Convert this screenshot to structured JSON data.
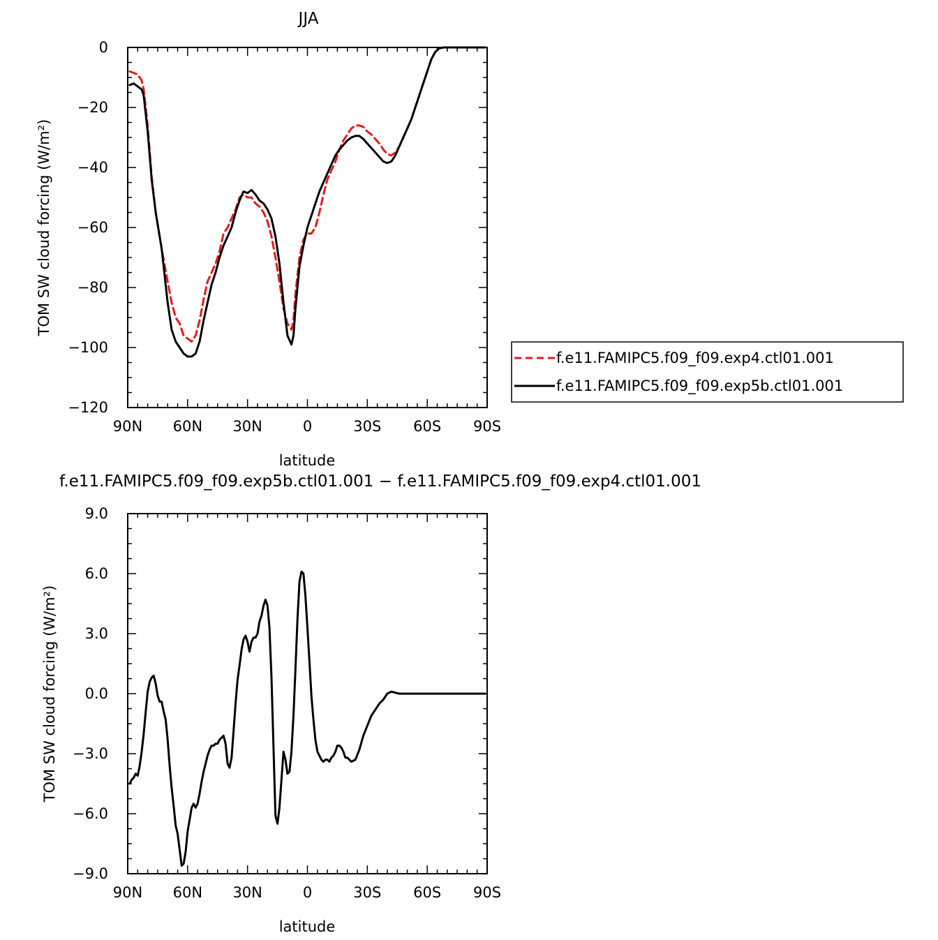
{
  "chart_data": [
    {
      "type": "line",
      "title": "JJA",
      "xlabel": "latitude",
      "ylabel": "TOM SW cloud forcing (W/m²)",
      "xlim": [
        90,
        -90
      ],
      "ylim": [
        -120,
        0
      ],
      "x_ticks": [
        90,
        60,
        30,
        0,
        -30,
        -60,
        -90
      ],
      "x_tick_labels": [
        "90N",
        "60N",
        "30N",
        "0",
        "30S",
        "60S",
        "90S"
      ],
      "y_ticks": [
        0,
        -20,
        -40,
        -60,
        -80,
        -100,
        -120
      ],
      "y_tick_labels": [
        "0",
        "−20",
        "−40",
        "−60",
        "−80",
        "−100",
        "−120"
      ],
      "legend": "right",
      "series": [
        {
          "name": "f.e11.FAMIPC5.f09_f09.exp4.ctl01.001",
          "color": "#e41a1c",
          "dash": "dashed",
          "x": [
            89,
            87,
            85,
            83,
            82,
            80,
            78,
            76,
            73,
            70,
            68,
            66,
            64,
            62,
            60,
            58,
            56,
            54,
            52,
            50,
            48,
            46,
            44,
            42,
            40,
            38,
            36,
            34,
            32,
            30,
            28,
            26,
            24,
            22,
            20,
            18,
            16,
            14,
            12,
            10,
            8,
            7,
            6,
            4,
            2,
            0,
            -2,
            -4,
            -6,
            -8,
            -10,
            -12,
            -14,
            -16,
            -18,
            -20,
            -22,
            -24,
            -26,
            -28,
            -30,
            -32,
            -34,
            -36,
            -38,
            -40,
            -42,
            -44,
            -46,
            -48,
            -50,
            -52,
            -54,
            -56,
            -58,
            -60,
            -62,
            -64,
            -66,
            -68,
            -70,
            -75,
            -80,
            -85,
            -89
          ],
          "y": [
            -8,
            -8.5,
            -9,
            -11,
            -14,
            -26,
            -43,
            -55,
            -67,
            -78,
            -85,
            -90,
            -92,
            -96,
            -97,
            -98,
            -96,
            -91,
            -84,
            -78,
            -75,
            -72,
            -68,
            -62,
            -60,
            -57,
            -54,
            -50,
            -49,
            -50,
            -50,
            -52,
            -53,
            -55,
            -58,
            -63,
            -70,
            -78,
            -87,
            -92,
            -94,
            -91,
            -82,
            -70,
            -64,
            -62,
            -62,
            -60,
            -55,
            -49,
            -44,
            -41,
            -38,
            -34,
            -31,
            -29,
            -27,
            -26,
            -26,
            -26.5,
            -28,
            -29,
            -30.5,
            -32,
            -34,
            -35.5,
            -36,
            -35,
            -33,
            -30,
            -27,
            -24,
            -20,
            -16,
            -12,
            -8,
            -4,
            -1.5,
            -0.3,
            0,
            0,
            0,
            0,
            0,
            0
          ]
        },
        {
          "name": "f.e11.FAMIPC5.f09_f09.exp5b.ctl01.001",
          "color": "#000000",
          "dash": "solid",
          "x": [
            89,
            87,
            85,
            83,
            82,
            80,
            78,
            76,
            73,
            70,
            68,
            66,
            64,
            62,
            60,
            58,
            56,
            54,
            52,
            50,
            48,
            46,
            44,
            42,
            40,
            38,
            36,
            34,
            32,
            30,
            28,
            26,
            24,
            22,
            20,
            18,
            16,
            14,
            12,
            10,
            8,
            7,
            6,
            4,
            2,
            0,
            -2,
            -4,
            -6,
            -8,
            -10,
            -12,
            -14,
            -16,
            -18,
            -20,
            -22,
            -24,
            -26,
            -28,
            -30,
            -32,
            -34,
            -36,
            -38,
            -40,
            -42,
            -44,
            -46,
            -48,
            -50,
            -52,
            -54,
            -56,
            -58,
            -60,
            -62,
            -64,
            -66,
            -68,
            -70,
            -75,
            -80,
            -85,
            -89
          ],
          "y": [
            -12.5,
            -12,
            -13,
            -14,
            -16,
            -28,
            -44,
            -55,
            -67,
            -85,
            -94,
            -98,
            -100,
            -102,
            -103,
            -103,
            -102,
            -98,
            -91,
            -85,
            -79,
            -75,
            -70,
            -66,
            -63,
            -60,
            -55,
            -51,
            -48,
            -48.5,
            -47.5,
            -49,
            -51,
            -52,
            -54,
            -57,
            -63,
            -72,
            -85,
            -96,
            -99,
            -96,
            -87,
            -73,
            -66,
            -60,
            -56,
            -52,
            -48,
            -45,
            -42,
            -39,
            -36,
            -34,
            -32.5,
            -31,
            -30,
            -29.5,
            -29.5,
            -30.5,
            -32,
            -33.5,
            -35,
            -36.5,
            -38,
            -38.5,
            -38,
            -36,
            -33,
            -30,
            -27,
            -24,
            -20,
            -16,
            -12,
            -8,
            -4,
            -1.5,
            -0.3,
            0,
            0,
            0,
            0,
            0,
            0
          ]
        }
      ]
    },
    {
      "type": "line",
      "title": "f.e11.FAMIPC5.f09_f09.exp5b.ctl01.001 − f.e11.FAMIPC5.f09_f09.exp4.ctl01.001",
      "xlabel": "latitude",
      "ylabel": "TOM SW cloud forcing (W/m²)",
      "xlim": [
        90,
        -90
      ],
      "ylim": [
        -9,
        9
      ],
      "x_ticks": [
        90,
        60,
        30,
        0,
        -30,
        -60,
        -90
      ],
      "x_tick_labels": [
        "90N",
        "60N",
        "30N",
        "0",
        "30S",
        "60S",
        "90S"
      ],
      "y_ticks": [
        9,
        6,
        3,
        0,
        -3,
        -6,
        -9
      ],
      "y_tick_labels": [
        "9.0",
        "6.0",
        "3.0",
        "0.0",
        "−3.0",
        "−6.0",
        "−9.0"
      ],
      "series": [
        {
          "color": "#000000",
          "dash": "solid",
          "x": [
            89,
            88,
            87,
            86,
            85,
            84,
            83,
            82,
            81,
            80,
            79,
            78,
            77,
            76,
            75,
            74,
            73,
            72,
            71,
            70,
            69,
            68,
            67,
            66,
            65,
            64,
            63,
            62,
            61,
            60,
            59,
            58,
            57,
            56,
            55,
            54,
            53,
            52,
            51,
            50,
            49,
            48,
            47,
            46,
            45,
            44,
            43,
            42,
            41,
            40,
            39,
            38,
            37,
            36,
            35,
            34,
            33,
            32,
            31,
            30,
            29,
            28,
            27,
            26,
            25,
            24,
            23,
            22,
            21,
            20,
            19,
            18,
            17,
            16,
            15,
            14,
            13,
            12,
            11,
            10,
            9,
            8,
            7,
            6,
            5,
            4,
            3,
            2,
            1,
            0,
            -1,
            -2,
            -3,
            -4,
            -5,
            -6,
            -7,
            -8,
            -9,
            -10,
            -11,
            -12,
            -13,
            -14,
            -15,
            -16,
            -17,
            -18,
            -19,
            -20,
            -22,
            -24,
            -26,
            -28,
            -30,
            -32,
            -34,
            -36,
            -38,
            -40,
            -42,
            -44,
            -46,
            -48,
            -50,
            -52,
            -54,
            -56,
            -58,
            -60,
            -62,
            -64,
            -66,
            -70,
            -75,
            -80,
            -85,
            -89
          ],
          "y": [
            -4.5,
            -4.3,
            -4.2,
            -4.0,
            -4.1,
            -3.6,
            -2.9,
            -2.0,
            -0.9,
            0.1,
            0.6,
            0.8,
            0.9,
            0.5,
            -0.1,
            -0.4,
            -0.4,
            -0.9,
            -1.3,
            -2.3,
            -3.6,
            -4.7,
            -5.6,
            -6.6,
            -7.0,
            -7.8,
            -8.6,
            -8.5,
            -7.9,
            -6.9,
            -6.3,
            -5.7,
            -5.5,
            -5.7,
            -5.5,
            -5.0,
            -4.4,
            -3.9,
            -3.5,
            -3.1,
            -2.8,
            -2.6,
            -2.6,
            -2.5,
            -2.5,
            -2.3,
            -2.2,
            -2.1,
            -2.5,
            -3.5,
            -3.7,
            -3.2,
            -1.9,
            -0.5,
            0.7,
            1.4,
            2.2,
            2.7,
            2.9,
            2.6,
            2.1,
            2.6,
            2.8,
            2.8,
            3.0,
            3.6,
            3.9,
            4.4,
            4.7,
            4.4,
            3.3,
            0.8,
            -2.7,
            -6.1,
            -6.5,
            -5.7,
            -4.3,
            -2.9,
            -3.3,
            -4.0,
            -3.9,
            -2.9,
            -1.1,
            1.2,
            3.7,
            5.6,
            6.1,
            6.0,
            4.9,
            3.3,
            1.6,
            -0.1,
            -1.3,
            -2.3,
            -2.9,
            -3.1,
            -3.3,
            -3.4,
            -3.3,
            -3.3,
            -3.4,
            -3.2,
            -3.1,
            -2.9,
            -2.6,
            -2.6,
            -2.7,
            -2.9,
            -3.2,
            -3.2,
            -3.4,
            -3.3,
            -2.8,
            -2.1,
            -1.6,
            -1.1,
            -0.8,
            -0.5,
            -0.3,
            0.0,
            0.1,
            0.05,
            0.0,
            0.0,
            0.0,
            0.0,
            0.0,
            0.0,
            0.0,
            0.0,
            0.0,
            0.0,
            0.0,
            0.0,
            0.0,
            0.0,
            0.0,
            0.0
          ]
        }
      ]
    }
  ]
}
